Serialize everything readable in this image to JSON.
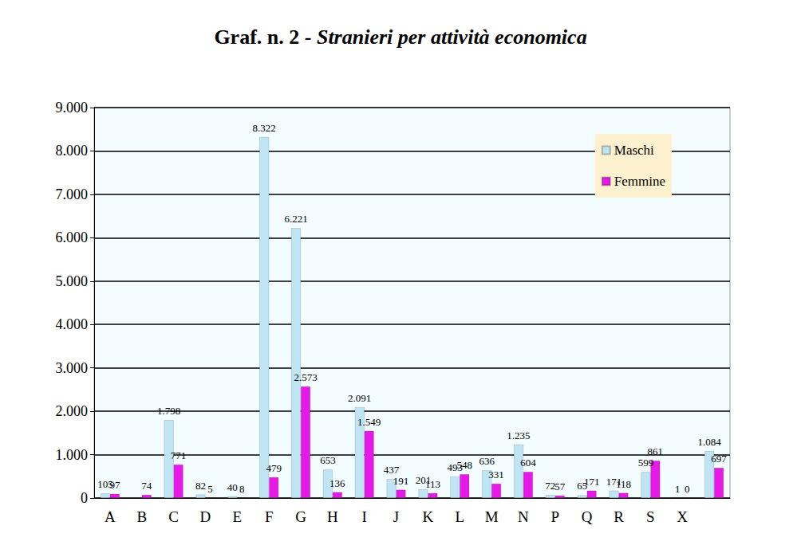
{
  "chart_data": {
    "type": "bar",
    "title": "Graf. n. 2 - Stranieri per attività economica",
    "categories": [
      "A",
      "B",
      "C",
      "D",
      "E",
      "F",
      "G",
      "H",
      "I",
      "J",
      "K",
      "L",
      "M",
      "N",
      "P",
      "Q",
      "R",
      "S",
      "X",
      null
    ],
    "series": [
      {
        "name": "Maschi",
        "color": "#bfe4f4",
        "values": [
          105,
          null,
          1798,
          82,
          40,
          8322,
          6221,
          653,
          2091,
          437,
          201,
          493,
          636,
          1235,
          72,
          65,
          171,
          599,
          1,
          1084
        ],
        "value_labels": [
          "105",
          null,
          "1.798",
          "82",
          "40",
          "8.322",
          "6.221",
          "653",
          "2.091",
          "437",
          "201",
          "493",
          "636",
          "1.235",
          "72",
          "65",
          "171",
          "599",
          "1",
          "1.084"
        ]
      },
      {
        "name": "Femmine",
        "color": "#e619e6",
        "values": [
          97,
          74,
          771,
          5,
          8,
          479,
          2573,
          136,
          1549,
          191,
          113,
          548,
          331,
          604,
          57,
          171,
          118,
          861,
          0,
          697
        ],
        "value_labels": [
          "97",
          "74",
          "771",
          "5",
          "8",
          "479",
          "2.573",
          "136",
          "1.549",
          "191",
          "113",
          "548",
          "331",
          "604",
          "57",
          "171",
          "118",
          "861",
          "0",
          "697"
        ]
      }
    ],
    "ylim": [
      0,
      9000
    ],
    "yticks": [
      0,
      {
        "value": 1000,
        "label": "1.000"
      },
      {
        "value": 2000,
        "label": "2.000"
      },
      {
        "value": 3000,
        "label": "3.000"
      },
      {
        "value": 4000,
        "label": "4.000"
      },
      {
        "value": 5000,
        "label": "5.000"
      },
      {
        "value": 6000,
        "label": "6.000"
      },
      {
        "value": 7000,
        "label": "7.000"
      },
      {
        "value": 8000,
        "label": "8.000"
      },
      {
        "value": 9000,
        "label": "9.000"
      }
    ],
    "grid": true,
    "legend": "upper right",
    "data_labels": true
  }
}
